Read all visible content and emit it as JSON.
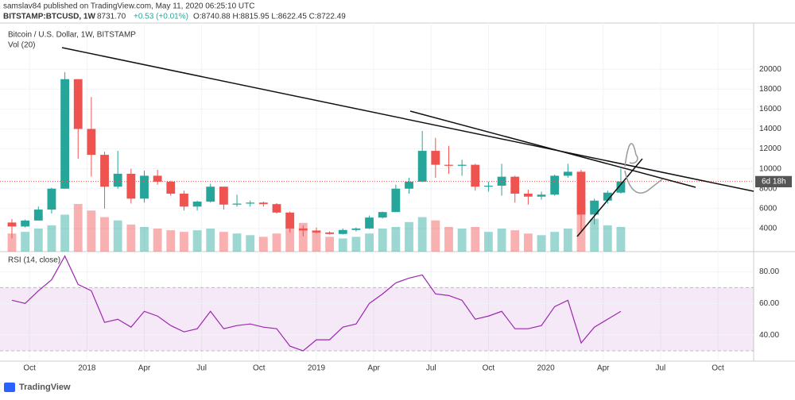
{
  "header": {
    "publisher": "samslav84 published on TradingView.com, May 11, 2020 06:25:10 UTC",
    "symbol": "BITSTAMP:BTCUSD, 1W",
    "last": "8731.70",
    "change": "+0.53 (+0.01%)",
    "ohlc": "O:8740.88 H:8815.95 L:8622.45 C:8722.49",
    "countdown": "6d 18h",
    "brand": "TradingView"
  },
  "chart_data": [
    {
      "type": "candlestick",
      "title": "Bitcoin / U.S. Dollar, 1W, BITSTAMP",
      "x": [
        0,
        3,
        6,
        9,
        12,
        15,
        18,
        21,
        24,
        27,
        30,
        33,
        36,
        39,
        42,
        45,
        48,
        51,
        54,
        57,
        60,
        63,
        66,
        69,
        72,
        75,
        78,
        81,
        84,
        87,
        90,
        93,
        96,
        99,
        102,
        105,
        108,
        111,
        114,
        117,
        120,
        123,
        126,
        129,
        132,
        135,
        138
      ],
      "open": [
        4600,
        4200,
        4800,
        5900,
        8000,
        19000,
        14000,
        11400,
        8200,
        9500,
        7000,
        9300,
        8700,
        7500,
        6200,
        6700,
        8200,
        6400,
        6500,
        6600,
        6450,
        5600,
        4000,
        3800,
        3600,
        3450,
        3850,
        4000,
        5100,
        5650,
        8000,
        8700,
        11800,
        10400,
        10300,
        10400,
        8200,
        8300,
        9200,
        7500,
        7200,
        7400,
        9300,
        9700,
        5400,
        6800,
        7600
      ],
      "high": [
        4950,
        4900,
        6200,
        8100,
        19700,
        19000,
        17200,
        11700,
        11800,
        10000,
        9800,
        9900,
        8800,
        7800,
        6800,
        8500,
        8200,
        7400,
        6800,
        6700,
        6550,
        5700,
        4300,
        4100,
        3700,
        4000,
        4100,
        5300,
        5700,
        8400,
        9100,
        13800,
        13100,
        12300,
        10900,
        10500,
        8700,
        10500,
        9300,
        7900,
        7700,
        9400,
        10500,
        9900,
        7000,
        7800,
        10000
      ],
      "low": [
        3000,
        4100,
        4800,
        5500,
        8000,
        11000,
        9200,
        6000,
        8000,
        6500,
        6600,
        8400,
        7300,
        5800,
        5800,
        6600,
        5900,
        6200,
        6200,
        6200,
        5500,
        3600,
        3200,
        3500,
        3400,
        3400,
        3700,
        3950,
        5000,
        5650,
        7500,
        8700,
        9100,
        9500,
        9300,
        7800,
        7700,
        7300,
        6600,
        6400,
        6900,
        7300,
        9100,
        3800,
        4400,
        6500,
        7500
      ],
      "close": [
        4200,
        4800,
        5900,
        8000,
        19000,
        14000,
        11400,
        8200,
        9500,
        7000,
        9300,
        8700,
        7500,
        6200,
        6700,
        8200,
        6400,
        6500,
        6600,
        6450,
        5600,
        4000,
        3800,
        3600,
        3450,
        3850,
        4000,
        5100,
        5650,
        8000,
        8700,
        11800,
        10400,
        10300,
        10400,
        8200,
        8300,
        9200,
        7500,
        7200,
        7400,
        9300,
        9700,
        5400,
        6800,
        7600,
        8722.49
      ],
      "volume": {
        "name": "Vol (20)",
        "values": [
          22,
          24,
          28,
          32,
          45,
          58,
          50,
          42,
          38,
          33,
          30,
          28,
          26,
          24,
          26,
          28,
          24,
          22,
          20,
          18,
          22,
          40,
          35,
          25,
          18,
          16,
          18,
          22,
          28,
          30,
          36,
          42,
          38,
          30,
          28,
          30,
          24,
          28,
          26,
          22,
          20,
          24,
          28,
          55,
          40,
          32,
          30
        ]
      },
      "up_color": "#26a69a",
      "down_color": "#ef5350",
      "xlim": [
        -2.7,
        168.1
      ],
      "xticks": [
        {
          "value": 4,
          "label": "Oct"
        },
        {
          "value": 17,
          "label": "2018"
        },
        {
          "value": 30,
          "label": "Apr"
        },
        {
          "value": 43,
          "label": "Jul"
        },
        {
          "value": 56,
          "label": "Oct"
        },
        {
          "value": 69,
          "label": "2019"
        },
        {
          "value": 82,
          "label": "Apr"
        },
        {
          "value": 95,
          "label": "Jul"
        },
        {
          "value": 108,
          "label": "Oct"
        },
        {
          "value": 121,
          "label": "2020"
        },
        {
          "value": 134,
          "label": "Apr"
        },
        {
          "value": 147,
          "label": "Jul"
        },
        {
          "value": 160,
          "label": "Oct"
        }
      ],
      "ylim": [
        1680,
        24640
      ],
      "yticks": [
        4000,
        6000,
        8000,
        10000,
        12000,
        14000,
        16000,
        18000,
        20000
      ],
      "grid": true
    },
    {
      "type": "line",
      "title": "RSI (14, close)",
      "color": "#9c27b0",
      "x": [
        0,
        3,
        6,
        9,
        12,
        15,
        18,
        21,
        24,
        27,
        30,
        33,
        36,
        39,
        42,
        45,
        48,
        51,
        54,
        57,
        60,
        63,
        66,
        69,
        72,
        75,
        78,
        81,
        84,
        87,
        90,
        93,
        96,
        99,
        102,
        105,
        108,
        111,
        114,
        117,
        120,
        123,
        126,
        129,
        132,
        135,
        138
      ],
      "values": [
        62,
        60,
        68,
        75,
        90,
        72,
        68,
        48,
        50,
        45,
        55,
        52,
        46,
        42,
        44,
        55,
        44,
        46,
        47,
        45,
        44,
        33,
        30,
        37,
        37,
        45,
        47,
        60,
        66,
        73,
        76,
        78,
        66,
        65,
        62,
        50,
        52,
        55,
        44,
        44,
        46,
        58,
        62,
        35,
        45,
        50,
        55
      ],
      "band": [
        30,
        70
      ],
      "xlim": [
        -2.7,
        168.1
      ],
      "ylim": [
        23.5,
        92.8
      ],
      "yticks": [
        {
          "value": 40,
          "label": "40.00"
        },
        {
          "value": 60,
          "label": "60.00"
        },
        {
          "value": 80,
          "label": "80.00"
        }
      ],
      "grid": true
    }
  ]
}
